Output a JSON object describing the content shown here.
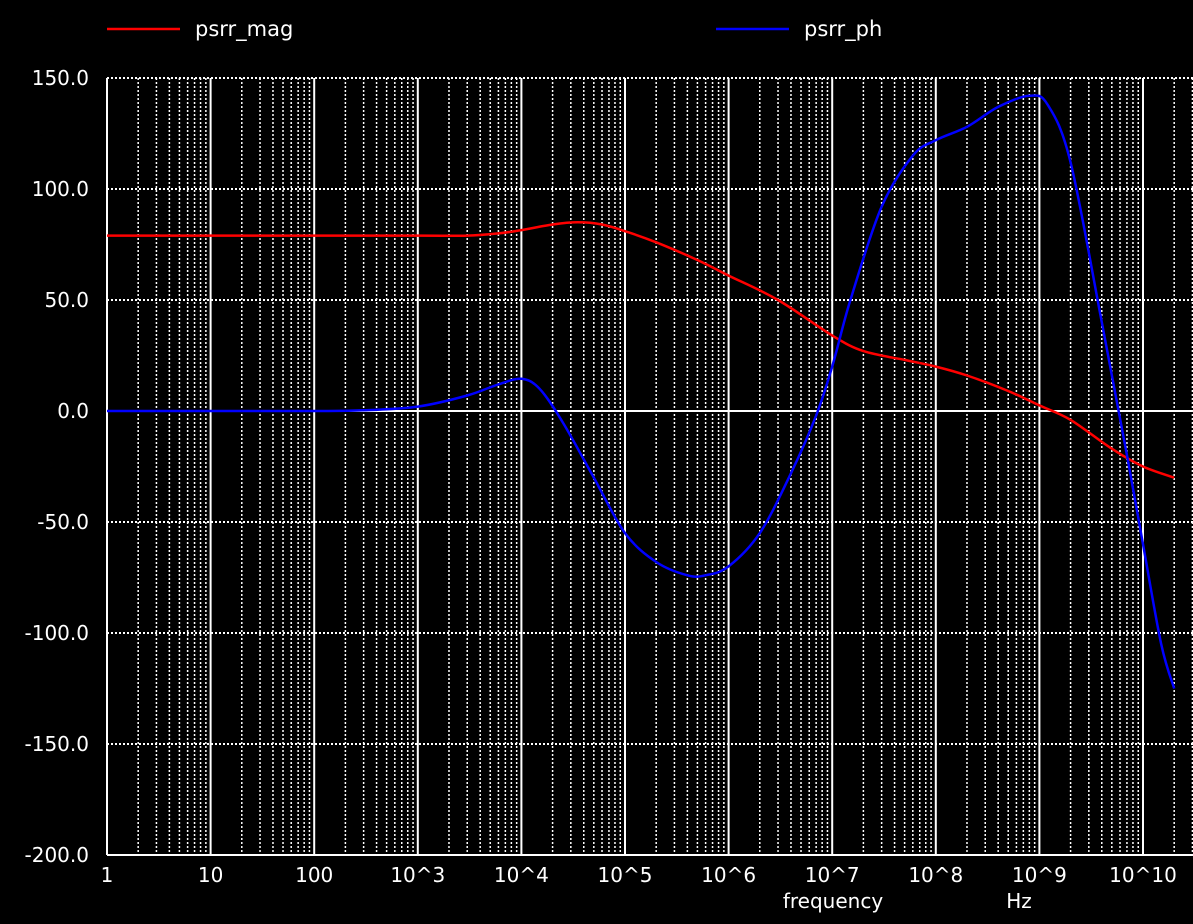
{
  "chart_data": {
    "type": "line",
    "xscale": "log",
    "xlim": [
      1,
      20000000000
    ],
    "ylim": [
      -200,
      150
    ],
    "grid": true,
    "background": "#000000",
    "grid_color": "#ffffff",
    "legend_placement": "top",
    "xlabel": "frequency",
    "xunit": "Hz",
    "x_ticks": [
      "1",
      "10",
      "100",
      "10^3",
      "10^4",
      "10^5",
      "10^6",
      "10^7",
      "10^8",
      "10^9",
      "10^10"
    ],
    "y_ticks": [
      "150.0",
      "100.0",
      "50.0",
      "0.0",
      "-50.0",
      "-100.0",
      "-150.0",
      "-200.0"
    ],
    "series": [
      {
        "name": "psrr_mag",
        "color": "#ff0000",
        "x": [
          1,
          10,
          100,
          1000,
          3000,
          6000,
          10000,
          20000,
          35000,
          60000,
          100000,
          200000,
          500000,
          1000000,
          3000000,
          10000000,
          20000000,
          50000000,
          100000000,
          200000000,
          500000000,
          1000000000,
          2000000000,
          5000000000,
          10000000000,
          20000000000
        ],
        "values": [
          79,
          79,
          79,
          79,
          79,
          80,
          81.5,
          84,
          85,
          84,
          81,
          76,
          68,
          61,
          50,
          34,
          27,
          23,
          20,
          16,
          9,
          2.5,
          -4,
          -17,
          -25,
          -30
        ]
      },
      {
        "name": "psrr_ph",
        "color": "#0000ff",
        "x": [
          1,
          10,
          100,
          300,
          1000,
          3000,
          6000,
          10000,
          15000,
          25000,
          50000,
          100000,
          200000,
          400000,
          600000,
          1000000,
          2000000,
          4000000,
          7000000,
          10000000,
          15000000,
          30000000,
          60000000,
          100000000,
          200000000,
          400000000,
          800000000,
          1200000000,
          2000000000,
          4000000000,
          7000000000,
          10000000000,
          15000000000,
          20000000000
        ],
        "values": [
          0,
          0,
          0,
          0.3,
          2,
          7,
          12,
          14.5,
          10,
          -5,
          -30,
          -55,
          -68,
          -74,
          -74,
          -70,
          -55,
          -28,
          -2,
          20,
          50,
          92,
          115,
          122,
          128,
          137,
          142,
          138,
          112,
          40,
          -20,
          -60,
          -105,
          -125
        ]
      }
    ]
  }
}
